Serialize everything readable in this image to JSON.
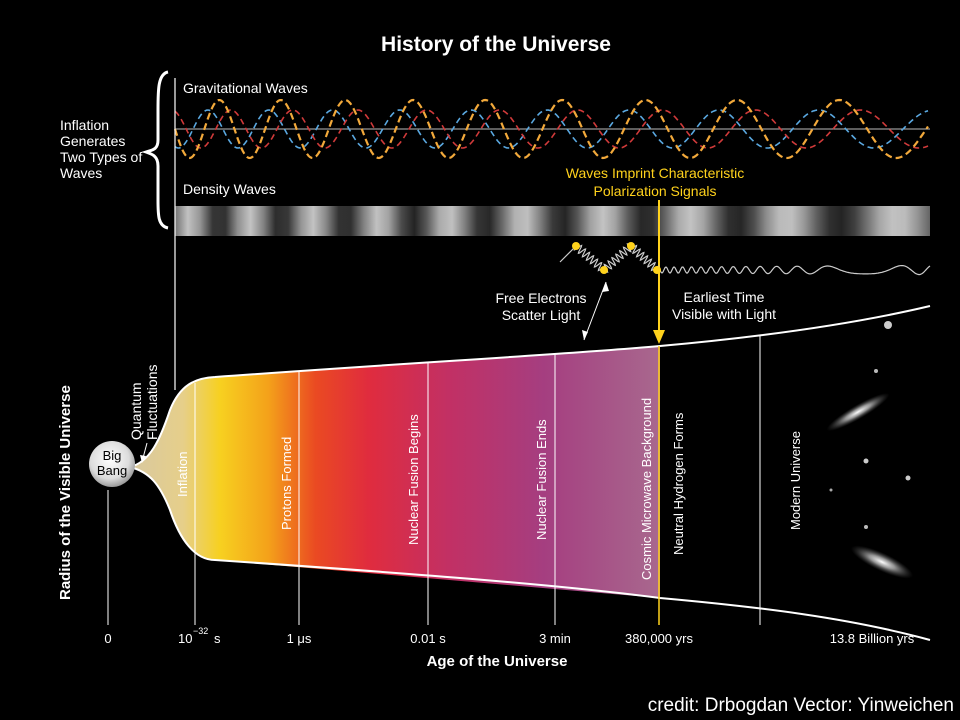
{
  "title": "History of the Universe",
  "side_note": [
    "Inflation",
    "Generates",
    "Two Types of",
    "Waves"
  ],
  "gravitational_waves": "Gravitational Waves",
  "density_waves": "Density Waves",
  "polarization": [
    "Waves Imprint Characteristic",
    "Polarization Signals"
  ],
  "free_electrons": [
    "Free Electrons",
    "Scatter Light"
  ],
  "earliest_time": [
    "Earliest Time",
    "Visible with Light"
  ],
  "quantum": [
    "Quantum",
    "Fluctuations"
  ],
  "big_bang": [
    "Big",
    "Bang"
  ],
  "eras": [
    "Inflation",
    "Protons Formed",
    "Nuclear Fusion Begins",
    "Nuclear Fusion Ends",
    "Cosmic Microwave Background",
    "Neutral Hydrogen Forms",
    "Modern Universe"
  ],
  "y_axis_label": "Radius of the Visible Universe",
  "x_axis_label": "Age of the Universe",
  "ticks": [
    "0",
    "10",
    "−32",
    "s",
    "1 μs",
    "0.01 s",
    "3 min",
    "380,000 yrs",
    "13.8 Billion yrs"
  ],
  "credit": "credit: Drbogdan Vector: Yinweichen",
  "colors": {
    "accent": "#ffd21c",
    "wave_orange": "#f2a93b",
    "wave_blue": "#5aa8e0",
    "wave_red": "#d03a3a"
  }
}
